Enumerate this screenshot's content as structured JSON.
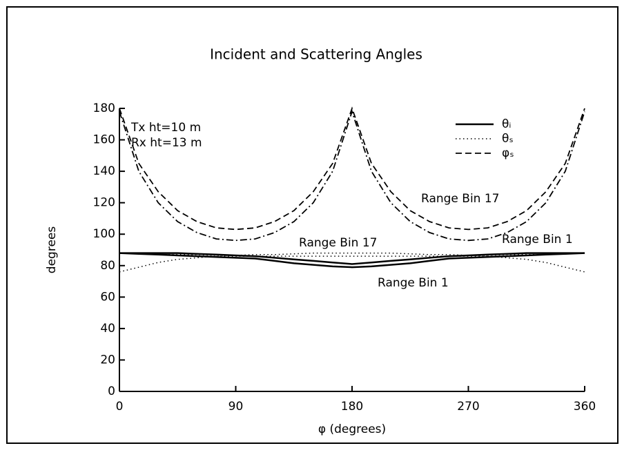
{
  "chart_data": {
    "type": "line",
    "title": "Incident and Scattering Angles",
    "xlabel": "φ (degrees)",
    "ylabel": "degrees",
    "xlim": [
      0,
      360
    ],
    "xticks": [
      0,
      90,
      180,
      270,
      360
    ],
    "ylim": [
      0,
      180
    ],
    "yticks": [
      0,
      20,
      40,
      60,
      80,
      100,
      120,
      140,
      160,
      180
    ],
    "x": [
      0,
      15,
      30,
      45,
      60,
      75,
      90,
      105,
      120,
      135,
      150,
      165,
      180,
      195,
      210,
      225,
      240,
      255,
      270,
      285,
      300,
      315,
      330,
      345,
      360
    ],
    "legend": [
      {
        "label": "θᵢ",
        "dash": "solid"
      },
      {
        "label": "θₛ",
        "dash": "dotted"
      },
      {
        "label": "φₛ",
        "dash": "dashed"
      }
    ],
    "series": [
      {
        "dash": "solid",
        "color": "#000",
        "values": [
          88,
          88,
          88,
          88,
          87.5,
          87,
          86.5,
          86,
          85,
          84,
          83,
          82,
          81,
          82,
          83,
          84,
          85,
          86,
          86.5,
          87,
          87.5,
          88,
          88,
          88,
          88
        ]
      },
      {
        "dash": "solid",
        "color": "#000",
        "values": [
          88,
          87.5,
          87,
          86.5,
          86,
          85.5,
          85,
          84.5,
          83,
          81.5,
          80.5,
          79.5,
          79,
          79.5,
          80.5,
          81.5,
          83,
          84.5,
          85,
          85.5,
          86,
          86.5,
          87,
          87.5,
          88
        ]
      },
      {
        "dash": "dotted",
        "color": "#000",
        "values": [
          76,
          79,
          82,
          84,
          85,
          86,
          86,
          86,
          86,
          86,
          86,
          86,
          86,
          86,
          86,
          86,
          86,
          86,
          86,
          86,
          85,
          84,
          82,
          79,
          76
        ]
      },
      {
        "dash": "dotted",
        "color": "#000",
        "values": [
          88,
          88,
          87,
          87,
          87,
          86.5,
          86.5,
          87,
          87,
          87.5,
          88,
          88,
          88,
          88,
          88,
          87.5,
          87,
          87,
          86.5,
          86.5,
          87,
          87,
          87,
          88,
          88
        ]
      },
      {
        "dash": "dashed",
        "color": "#000",
        "values": [
          180,
          145,
          127,
          115,
          108,
          104,
          103,
          104,
          108,
          115,
          127,
          145,
          180,
          145,
          127,
          115,
          108,
          104,
          103,
          104,
          108,
          115,
          127,
          145,
          180
        ]
      },
      {
        "dash": "dashdot",
        "color": "#000",
        "values": [
          178,
          140,
          120,
          108,
          101,
          97,
          96,
          97,
          101,
          108,
          120,
          140,
          178,
          140,
          120,
          108,
          101,
          97,
          96,
          97,
          101,
          108,
          120,
          140,
          178
        ]
      }
    ],
    "annotations": [
      "Tx ht=10 m",
      "Rx ht=13 m",
      "Range Bin 17",
      "Range Bin 1",
      "Range Bin 17",
      "Range Bin 1"
    ]
  }
}
